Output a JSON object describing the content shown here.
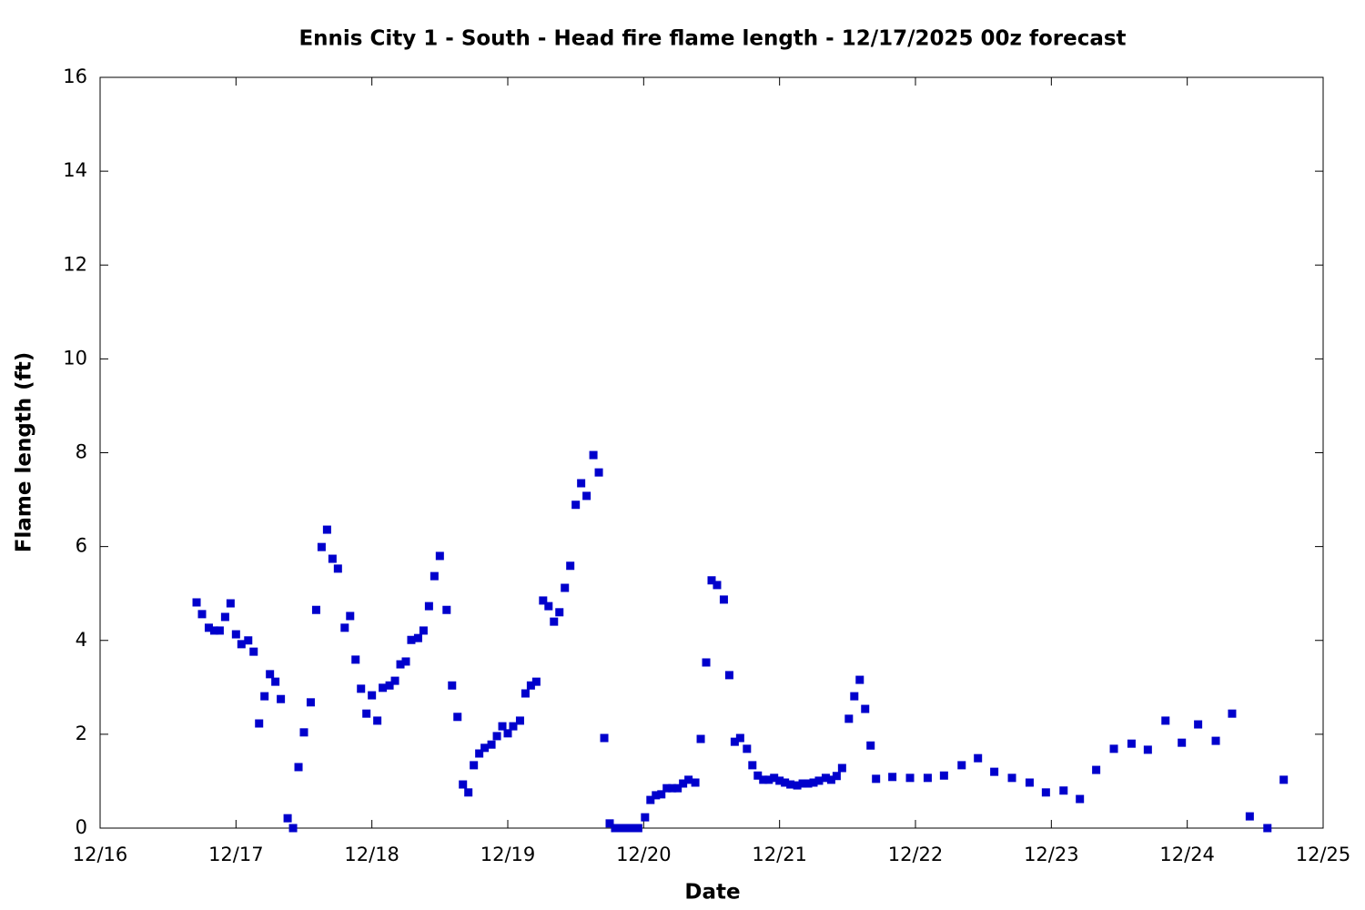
{
  "chart_data": {
    "type": "scatter",
    "title": "Ennis City 1 - South - Head fire flame length - 12/17/2025 00z forecast",
    "x_label": "Date",
    "y_label": "Flame length (ft)",
    "color": "#0000cc",
    "xlim": [
      16,
      25
    ],
    "xticks": [
      {
        "value": 16,
        "label": "12/16"
      },
      {
        "value": 17,
        "label": "12/17"
      },
      {
        "value": 18,
        "label": "12/18"
      },
      {
        "value": 19,
        "label": "12/19"
      },
      {
        "value": 20,
        "label": "12/20"
      },
      {
        "value": 21,
        "label": "12/21"
      },
      {
        "value": 22,
        "label": "12/22"
      },
      {
        "value": 23,
        "label": "12/23"
      },
      {
        "value": 24,
        "label": "12/24"
      },
      {
        "value": 25,
        "label": "12/25"
      }
    ],
    "ylim": [
      0,
      16
    ],
    "yticks": [
      0,
      2,
      4,
      6,
      8,
      10,
      12,
      14,
      16
    ],
    "x": [
      16.71,
      16.75,
      16.8,
      16.84,
      16.88,
      16.92,
      16.96,
      17.0,
      17.04,
      17.09,
      17.13,
      17.17,
      17.21,
      17.25,
      17.29,
      17.33,
      17.38,
      17.42,
      17.46,
      17.5,
      17.55,
      17.59,
      17.63,
      17.67,
      17.71,
      17.75,
      17.8,
      17.84,
      17.88,
      17.92,
      17.96,
      18.0,
      18.04,
      18.08,
      18.13,
      18.17,
      18.21,
      18.25,
      18.29,
      18.34,
      18.38,
      18.42,
      18.46,
      18.5,
      18.55,
      18.59,
      18.63,
      18.67,
      18.71,
      18.75,
      18.79,
      18.83,
      18.88,
      18.92,
      18.96,
      19.0,
      19.04,
      19.09,
      19.13,
      19.17,
      19.21,
      19.26,
      19.3,
      19.34,
      19.38,
      19.42,
      19.46,
      19.5,
      19.54,
      19.58,
      19.63,
      19.67,
      19.71,
      19.75,
      19.79,
      19.84,
      19.88,
      19.92,
      19.96,
      20.01,
      20.05,
      20.09,
      20.13,
      20.17,
      20.21,
      20.25,
      20.29,
      20.33,
      20.38,
      20.42,
      20.46,
      20.5,
      20.54,
      20.59,
      20.63,
      20.67,
      20.71,
      20.76,
      20.8,
      20.84,
      20.88,
      20.92,
      20.96,
      21.0,
      21.04,
      21.08,
      21.13,
      21.17,
      21.21,
      21.25,
      21.29,
      21.34,
      21.38,
      21.42,
      21.46,
      21.51,
      21.55,
      21.59,
      21.63,
      21.67,
      21.71,
      21.83,
      21.96,
      22.09,
      22.21,
      22.34,
      22.46,
      22.58,
      22.71,
      22.84,
      22.96,
      23.09,
      23.21,
      23.33,
      23.46,
      23.59,
      23.71,
      23.84,
      23.96,
      24.08,
      24.21,
      24.33,
      24.46,
      24.59,
      24.71
    ],
    "values": [
      4.81,
      4.56,
      4.27,
      4.21,
      4.21,
      4.5,
      4.79,
      4.13,
      3.92,
      4.0,
      3.76,
      2.23,
      2.81,
      3.28,
      3.12,
      2.75,
      0.21,
      0,
      1.3,
      2.04,
      2.68,
      4.65,
      5.99,
      6.36,
      5.74,
      5.53,
      4.27,
      4.52,
      3.59,
      2.97,
      2.44,
      2.83,
      2.29,
      2.99,
      3.04,
      3.14,
      3.49,
      3.55,
      4.01,
      4.05,
      4.21,
      4.73,
      5.37,
      5.8,
      4.65,
      3.04,
      2.37,
      0.93,
      0.76,
      1.34,
      1.59,
      1.71,
      1.78,
      1.96,
      2.17,
      2.02,
      2.17,
      2.29,
      2.87,
      3.04,
      3.12,
      4.85,
      4.73,
      4.4,
      4.6,
      5.12,
      5.59,
      6.89,
      7.35,
      7.08,
      7.95,
      7.58,
      1.92,
      0.1,
      0,
      0,
      0,
      0,
      0,
      0.23,
      0.6,
      0.7,
      0.72,
      0.85,
      0.85,
      0.85,
      0.95,
      1.03,
      0.97,
      1.9,
      3.53,
      5.28,
      5.18,
      4.87,
      3.26,
      1.84,
      1.92,
      1.69,
      1.34,
      1.12,
      1.03,
      1.03,
      1.07,
      1.01,
      0.97,
      0.93,
      0.91,
      0.95,
      0.95,
      0.97,
      1.01,
      1.07,
      1.03,
      1.11,
      1.28,
      2.33,
      2.81,
      3.16,
      2.54,
      1.76,
      1.05,
      1.09,
      1.07,
      1.07,
      1.12,
      1.34,
      1.49,
      1.2,
      1.07,
      0.97,
      0.76,
      0.8,
      0.62,
      1.24,
      1.69,
      1.8,
      1.67,
      2.29,
      1.82,
      2.21,
      1.86,
      2.44,
      0.25,
      0,
      1.03
    ]
  }
}
